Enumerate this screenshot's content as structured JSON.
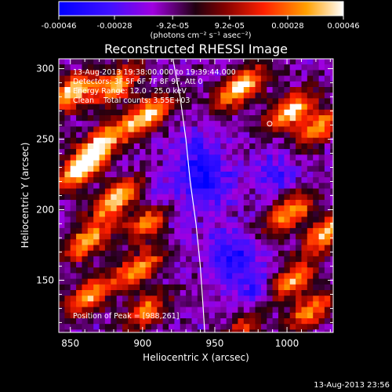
{
  "chart_data": {
    "type": "heatmap",
    "title": "Reconstructed RHESSI Image",
    "xlabel": "Heliocentric X (arcsec)",
    "ylabel": "Heliocentric Y (arcsec)",
    "xlim": [
      842,
      1032
    ],
    "ylim": [
      113,
      307
    ],
    "x_ticks": [
      850,
      900,
      950,
      1000
    ],
    "y_ticks": [
      150,
      200,
      250,
      300
    ],
    "annotations": [
      "13-Aug-2013 19:38:00.000 to 19:39:44.000",
      "Detectors: 3F 5F 6F 7F 8F 9F, Att 0",
      "Energy Range: 12.0 - 25.0 keV",
      "Clean    Total counts: 3.55E+03"
    ],
    "peak_label": "Position of Peak = [988,261]",
    "peak_position": [
      988,
      261
    ],
    "limb": [
      [
        921,
        307
      ],
      [
        926,
        280
      ],
      [
        930,
        250
      ],
      [
        933,
        220
      ],
      [
        937,
        190
      ],
      [
        940,
        160
      ],
      [
        942,
        130
      ],
      [
        943,
        113
      ]
    ],
    "hot_regions": [
      {
        "x": 848,
        "y": 285,
        "w": 1.0
      },
      {
        "x": 880,
        "y": 290,
        "w": 0.9
      },
      {
        "x": 902,
        "y": 270,
        "w": 1.0
      },
      {
        "x": 870,
        "y": 250,
        "w": 0.9
      },
      {
        "x": 855,
        "y": 230,
        "w": 1.0
      },
      {
        "x": 880,
        "y": 210,
        "w": 1.0
      },
      {
        "x": 905,
        "y": 195,
        "w": 1.0
      },
      {
        "x": 860,
        "y": 180,
        "w": 0.9
      },
      {
        "x": 895,
        "y": 160,
        "w": 0.8
      },
      {
        "x": 860,
        "y": 140,
        "w": 0.8
      },
      {
        "x": 900,
        "y": 130,
        "w": 0.7
      },
      {
        "x": 965,
        "y": 288,
        "w": 1.0
      },
      {
        "x": 1000,
        "y": 272,
        "w": 1.0
      },
      {
        "x": 1020,
        "y": 260,
        "w": 0.8
      },
      {
        "x": 1000,
        "y": 200,
        "w": 0.9
      },
      {
        "x": 1025,
        "y": 185,
        "w": 0.9
      },
      {
        "x": 1000,
        "y": 150,
        "w": 0.9
      },
      {
        "x": 1015,
        "y": 130,
        "w": 0.8
      },
      {
        "x": 970,
        "y": 120,
        "w": 0.6
      }
    ],
    "cold_regions": [
      {
        "x": 915,
        "y": 205,
        "w": 1.0
      },
      {
        "x": 945,
        "y": 220,
        "w": 0.9
      },
      {
        "x": 960,
        "y": 170,
        "w": 1.0
      },
      {
        "x": 980,
        "y": 140,
        "w": 0.9
      },
      {
        "x": 990,
        "y": 230,
        "w": 0.6
      },
      {
        "x": 935,
        "y": 240,
        "w": 0.7
      }
    ]
  },
  "colorbar": {
    "tick_labels": [
      "-0.00046",
      "-0.00028",
      "-9.2e-05",
      "9.2e-05",
      "0.00028",
      "0.00046"
    ],
    "units_label": "(photons cm⁻² s⁻¹ asec⁻²)",
    "range": [
      -0.00046,
      0.00046
    ]
  },
  "timestamp": "13-Aug-2013 23:56",
  "colors": {
    "background": "#000000",
    "text": "#ffffff",
    "limb": "#ffffff",
    "axis": "#ffffff"
  }
}
